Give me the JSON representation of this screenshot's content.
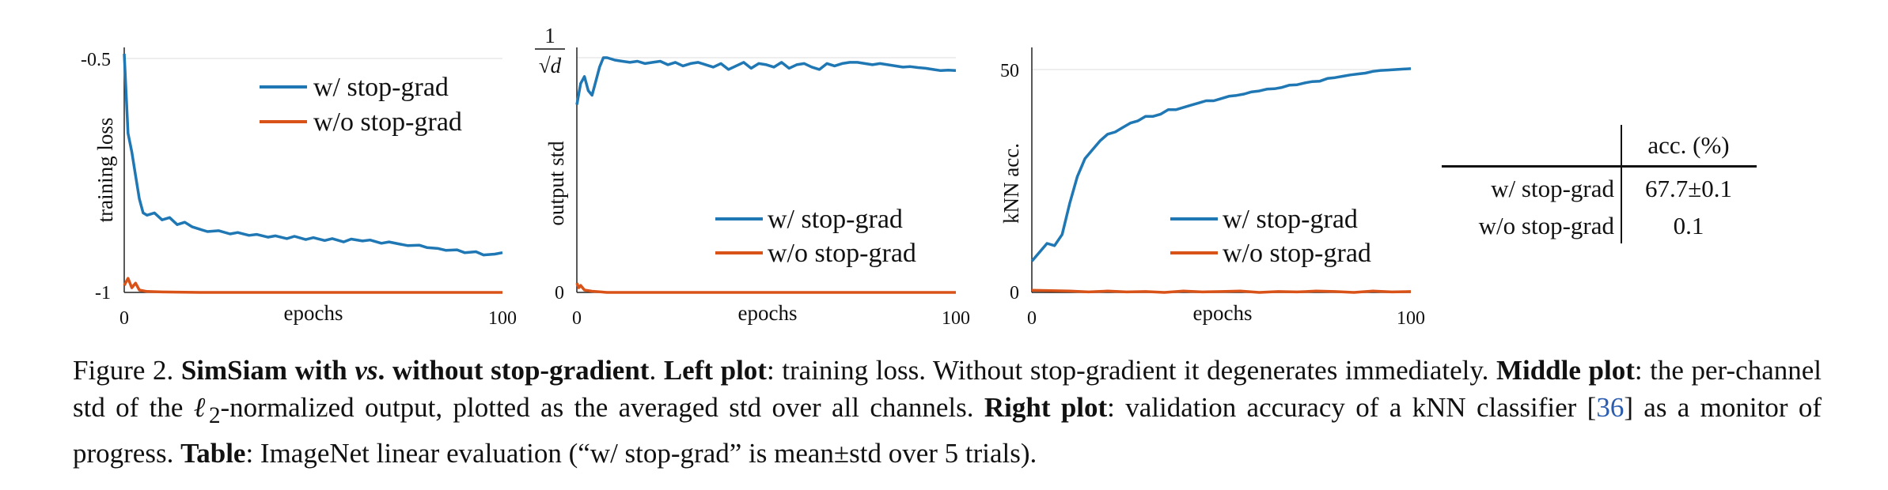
{
  "chart_data": [
    {
      "type": "line",
      "name": "left-plot",
      "xlabel": "epochs",
      "ylabel": "training loss",
      "xlim": [
        0,
        100
      ],
      "ylim": [
        -1,
        -0.5
      ],
      "xticks": [
        "0",
        "100"
      ],
      "yticks": [
        "-0.5",
        "-1"
      ],
      "legend_position": "top-right",
      "series": [
        {
          "name": "w/ stop-grad",
          "color": "#1f77b4",
          "x": [
            0,
            1,
            2,
            3,
            4,
            5,
            6,
            8,
            10,
            12,
            14,
            16,
            18,
            20,
            22,
            25,
            28,
            30,
            33,
            35,
            38,
            40,
            43,
            45,
            48,
            50,
            53,
            55,
            58,
            60,
            63,
            65,
            68,
            70,
            73,
            75,
            78,
            80,
            83,
            85,
            88,
            90,
            93,
            95,
            98,
            100
          ],
          "y": [
            -0.49,
            -0.66,
            -0.7,
            -0.75,
            -0.8,
            -0.83,
            -0.835,
            -0.83,
            -0.845,
            -0.84,
            -0.855,
            -0.85,
            -0.86,
            -0.865,
            -0.87,
            -0.868,
            -0.875,
            -0.872,
            -0.878,
            -0.876,
            -0.882,
            -0.879,
            -0.885,
            -0.88,
            -0.887,
            -0.883,
            -0.889,
            -0.885,
            -0.892,
            -0.886,
            -0.89,
            -0.888,
            -0.895,
            -0.892,
            -0.897,
            -0.9,
            -0.899,
            -0.904,
            -0.906,
            -0.91,
            -0.909,
            -0.915,
            -0.913,
            -0.92,
            -0.918,
            -0.915
          ]
        },
        {
          "name": "w/o stop-grad",
          "color": "#d95319",
          "x": [
            0,
            1,
            2,
            3,
            4,
            6,
            10,
            20,
            40,
            60,
            80,
            100
          ],
          "y": [
            -0.985,
            -0.97,
            -0.99,
            -0.98,
            -0.995,
            -0.998,
            -0.999,
            -1.0,
            -1.0,
            -1.0,
            -1.0,
            -1.0
          ]
        }
      ]
    },
    {
      "type": "line",
      "name": "middle-plot",
      "xlabel": "epochs",
      "ylabel": "output std",
      "xlim": [
        0,
        100
      ],
      "ylim": [
        0,
        1
      ],
      "xticks": [
        "0",
        "100"
      ],
      "yticks": [
        "1/√d",
        "0"
      ],
      "legend_position": "bottom-right",
      "series": [
        {
          "name": "w/ stop-grad",
          "color": "#1f77b4",
          "x": [
            0,
            1,
            2,
            3,
            4,
            5,
            6,
            7,
            8,
            9,
            10,
            12,
            14,
            16,
            18,
            20,
            22,
            24,
            26,
            28,
            30,
            32,
            34,
            36,
            38,
            40,
            42,
            44,
            46,
            48,
            50,
            52,
            54,
            56,
            58,
            60,
            62,
            64,
            66,
            68,
            70,
            72,
            74,
            76,
            78,
            80,
            82,
            84,
            86,
            88,
            90,
            92,
            94,
            96,
            98,
            100
          ],
          "y": [
            0.8,
            0.89,
            0.92,
            0.86,
            0.84,
            0.9,
            0.96,
            1.0,
            1.0,
            0.995,
            0.99,
            0.985,
            0.98,
            0.985,
            0.975,
            0.98,
            0.985,
            0.97,
            0.98,
            0.965,
            0.975,
            0.98,
            0.97,
            0.96,
            0.975,
            0.95,
            0.965,
            0.98,
            0.955,
            0.975,
            0.97,
            0.96,
            0.98,
            0.955,
            0.97,
            0.975,
            0.96,
            0.95,
            0.975,
            0.965,
            0.975,
            0.98,
            0.98,
            0.975,
            0.97,
            0.975,
            0.97,
            0.965,
            0.96,
            0.962,
            0.958,
            0.955,
            0.95,
            0.945,
            0.947,
            0.945
          ]
        },
        {
          "name": "w/o stop-grad",
          "color": "#d95319",
          "x": [
            0,
            0.5,
            1,
            2,
            4,
            8,
            20,
            50,
            100
          ],
          "y": [
            0.04,
            0.02,
            0.03,
            0.01,
            0.005,
            0.0,
            0.0,
            0.0,
            0.0
          ]
        }
      ]
    },
    {
      "type": "line",
      "name": "right-plot",
      "xlabel": "epochs",
      "ylabel": "kNN acc.",
      "xlim": [
        0,
        100
      ],
      "ylim": [
        0,
        50
      ],
      "xticks": [
        "0",
        "100"
      ],
      "yticks": [
        "50",
        "0"
      ],
      "legend_position": "bottom-right",
      "series": [
        {
          "name": "w/ stop-grad",
          "color": "#1f77b4",
          "x": [
            0,
            2,
            4,
            6,
            8,
            10,
            12,
            14,
            16,
            18,
            20,
            22,
            24,
            26,
            28,
            30,
            32,
            34,
            36,
            38,
            40,
            42,
            44,
            46,
            48,
            50,
            52,
            54,
            56,
            58,
            60,
            62,
            64,
            66,
            68,
            70,
            72,
            74,
            76,
            78,
            80,
            82,
            84,
            86,
            88,
            90,
            92,
            94,
            96,
            98,
            100
          ],
          "y": [
            7,
            9,
            11,
            10.5,
            13,
            20,
            26,
            30,
            32,
            34,
            35.5,
            36,
            37,
            38,
            38.5,
            39.5,
            39.5,
            40,
            41,
            41,
            41.5,
            42,
            42.5,
            43,
            43,
            43.5,
            44,
            44.2,
            44.5,
            45,
            45.2,
            45.6,
            45.7,
            46,
            46.5,
            46.6,
            47,
            47.3,
            47.4,
            48,
            48.2,
            48.5,
            48.8,
            49,
            49.2,
            49.6,
            49.8,
            49.9,
            50,
            50.1,
            50.2
          ]
        },
        {
          "name": "w/o stop-grad",
          "color": "#d95319",
          "x": [
            0,
            5,
            10,
            15,
            20,
            25,
            30,
            35,
            40,
            45,
            50,
            55,
            60,
            65,
            70,
            75,
            80,
            85,
            90,
            95,
            100
          ],
          "y": [
            0.5,
            0.4,
            0.3,
            0.1,
            0.3,
            0.1,
            0.2,
            0.0,
            0.3,
            0.1,
            0.2,
            0.3,
            0.0,
            0.2,
            0.1,
            0.3,
            0.2,
            0.0,
            0.3,
            0.1,
            0.2
          ]
        }
      ]
    }
  ],
  "table": {
    "header": "acc. (%)",
    "rows": [
      {
        "label": "w/ stop-grad",
        "value": "67.7±0.1"
      },
      {
        "label": "w/o stop-grad",
        "value": "0.1"
      }
    ]
  },
  "caption": {
    "prefix": "Figure 2. ",
    "title": "SimSiam with ",
    "vs": "vs",
    "title_rest": ". without stop-gradient",
    "period": ". ",
    "left_label": "Left plot",
    "left_text": ": training loss. Without stop-gradient it degenerates immediately. ",
    "middle_label": "Middle plot",
    "middle_text_a": ": the per-channel std of the ",
    "ell": "ℓ",
    "ell_sub": "2",
    "middle_text_b": "-normalized output, plotted as the averaged std over all channels. ",
    "right_label": "Right plot",
    "right_text_a": ": validation accuracy of a kNN classifier [",
    "cite": "36",
    "right_text_b": "] as a monitor of progress. ",
    "table_label": "Table",
    "table_text": ": ImageNet linear evaluation (“w/ stop-grad” is mean±std over 5 trials)."
  }
}
